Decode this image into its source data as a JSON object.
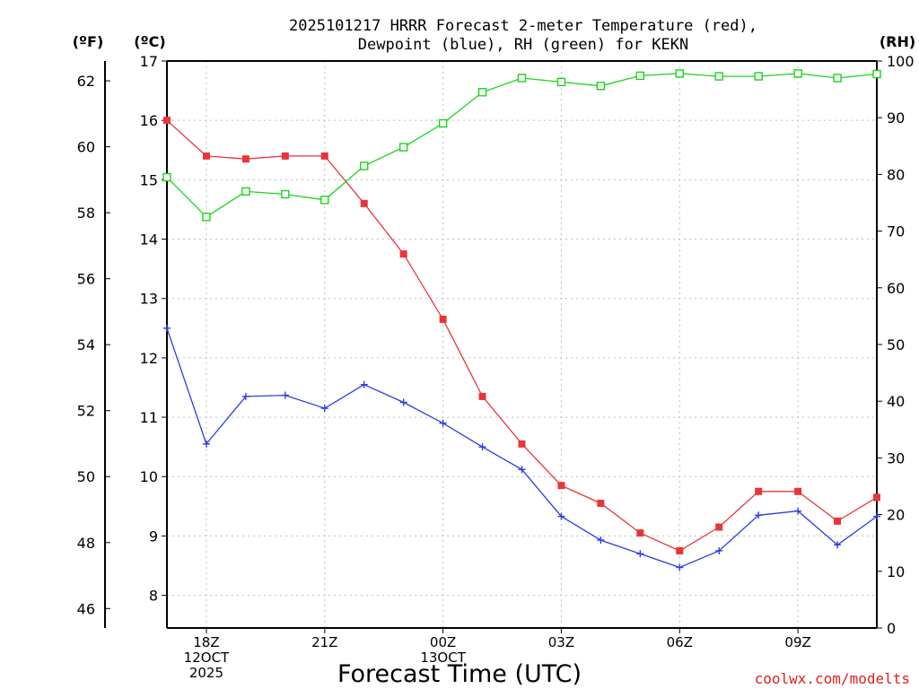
{
  "chart_data": {
    "type": "line",
    "title_line1": "2025101217 HRRR Forecast 2-meter Temperature (red),",
    "title_line2": "Dewpoint (blue), RH (green) for KEKN",
    "xlabel": "Forecast Time (UTC)",
    "credit": "coolwx.com/modelts",
    "unit_labels": {
      "fahrenheit": "(ºF)",
      "celsius": "(ºC)",
      "rh": "(RH)"
    },
    "x_hours": [
      17,
      18,
      19,
      20,
      21,
      22,
      23,
      24,
      25,
      26,
      27,
      28,
      29,
      30,
      31,
      32,
      33,
      34,
      35
    ],
    "xlim": [
      17,
      35
    ],
    "x_ticks": [
      {
        "hour": 18,
        "lines": [
          "18Z",
          "12OCT",
          "2025"
        ]
      },
      {
        "hour": 21,
        "lines": [
          "21Z"
        ]
      },
      {
        "hour": 24,
        "lines": [
          "00Z",
          "13OCT"
        ]
      },
      {
        "hour": 27,
        "lines": [
          "03Z"
        ]
      },
      {
        "hour": 30,
        "lines": [
          "06Z"
        ]
      },
      {
        "hour": 33,
        "lines": [
          "09Z"
        ]
      }
    ],
    "celsius_axis": {
      "min": 7.45,
      "max": 17.0,
      "ticks": [
        "8",
        "9",
        "10",
        "11",
        "12",
        "13",
        "14",
        "15",
        "16",
        "17"
      ]
    },
    "fahrenheit_axis": {
      "ticks": [
        "46",
        "48",
        "50",
        "52",
        "54",
        "56",
        "58",
        "60",
        "62"
      ]
    },
    "rh_axis": {
      "min": 0,
      "max": 100,
      "ticks": [
        "0",
        "10",
        "20",
        "30",
        "40",
        "50",
        "60",
        "70",
        "80",
        "90",
        "100"
      ]
    },
    "series": [
      {
        "name": "Temperature",
        "unit": "C",
        "color": "#e8353a",
        "marker": "filled-square",
        "values": [
          16.0,
          15.4,
          15.35,
          15.4,
          15.4,
          14.6,
          13.75,
          12.65,
          11.35,
          10.55,
          9.85,
          9.55,
          9.05,
          8.75,
          9.15,
          9.75,
          9.75,
          9.25,
          9.65
        ]
      },
      {
        "name": "Dewpoint",
        "unit": "C",
        "color": "#2b3fe0",
        "marker": "plus",
        "values": [
          12.5,
          10.55,
          11.35,
          11.37,
          11.15,
          11.55,
          11.25,
          10.9,
          10.5,
          10.12,
          9.33,
          8.93,
          8.7,
          8.47,
          8.75,
          9.35,
          9.42,
          8.85,
          9.33
        ]
      },
      {
        "name": "RH",
        "unit": "%",
        "color": "#19d419",
        "marker": "open-square",
        "values": [
          79.5,
          72.5,
          77,
          76.5,
          75.5,
          81.5,
          84.8,
          89,
          94.5,
          97,
          96.3,
          95.6,
          97.4,
          97.8,
          97.3,
          97.3,
          97.8,
          97,
          97.7
        ]
      }
    ]
  }
}
